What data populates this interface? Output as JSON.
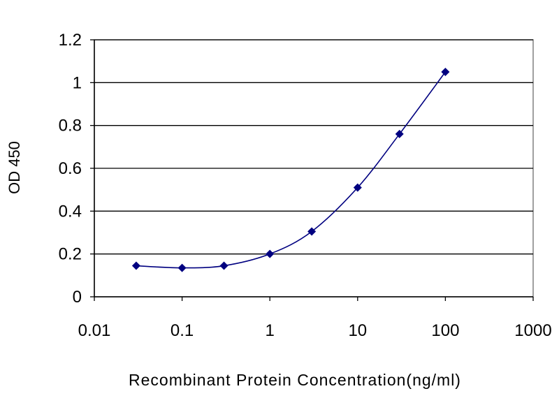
{
  "chart_data": {
    "type": "line",
    "title": "",
    "xlabel": "Recombinant Protein Concentration(ng/ml)",
    "ylabel": "OD 450",
    "x_scale": "log",
    "xlim": [
      0.01,
      1000
    ],
    "ylim": [
      0,
      1.2
    ],
    "x_ticks": [
      "0.01",
      "0.1",
      "1",
      "10",
      "100",
      "1000"
    ],
    "y_ticks": [
      "0",
      "0.2",
      "0.4",
      "0.6",
      "0.8",
      "1",
      "1.2"
    ],
    "grid": "horizontal",
    "legend": "none",
    "series": [
      {
        "color": "#000080",
        "marker": "diamond",
        "x": [
          0.03,
          0.1,
          0.3,
          1,
          3,
          10,
          30,
          100
        ],
        "y": [
          0.145,
          0.135,
          0.145,
          0.2,
          0.305,
          0.51,
          0.76,
          1.05
        ]
      }
    ]
  }
}
